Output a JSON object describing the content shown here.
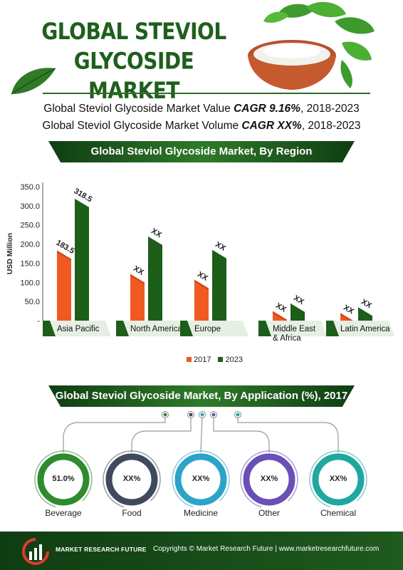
{
  "header": {
    "title_line1": "GLOBAL STEVIOL",
    "title_line2": "GLYCOSIDE MARKET",
    "value_prefix": "Global Steviol Glycoside Market Value ",
    "value_cagr": "CAGR 9.16%",
    "value_suffix": ", 2018-2023",
    "volume_prefix": "Global Steviol Glycoside Market Volume ",
    "volume_cagr": "CAGR XX%",
    "volume_suffix": ", 2018-2023"
  },
  "region_section": {
    "title": "Global Steviol Glycoside Market, By Region"
  },
  "application_section": {
    "title": "Global Steviol Glycoside Market, By Application (%), 2017"
  },
  "chart_data": [
    {
      "type": "bar",
      "title": "Global Steviol Glycoside Market, By Region",
      "ylabel": "USD Million",
      "xlabel": "",
      "ylim": [
        0,
        350
      ],
      "yticks": [
        "-",
        "50.0",
        "100.0",
        "150.0",
        "200.0",
        "250.0",
        "300.0",
        "350.0"
      ],
      "categories": [
        "Asia Pacific",
        "North America",
        "Europe",
        "Middle East & Africa",
        "Latin America"
      ],
      "category_lines": [
        [
          "Asia Pacific"
        ],
        [
          "North America"
        ],
        [
          "Europe"
        ],
        [
          "Middle East",
          "& Africa"
        ],
        [
          "Latin America"
        ]
      ],
      "series": [
        {
          "name": "2017",
          "values": [
            183.5,
            122,
            107,
            25,
            20
          ],
          "labels": [
            "183.5",
            "XX",
            "XX",
            "XX",
            "XX"
          ]
        },
        {
          "name": "2023",
          "values": [
            318.5,
            220,
            185,
            45,
            35
          ],
          "labels": [
            "318.5",
            "XX",
            "XX",
            "XX",
            "XX"
          ]
        }
      ],
      "legend_position": "bottom",
      "grid": false
    },
    {
      "type": "pie",
      "title": "Global Steviol Glycoside Market, By Application (%), 2017",
      "categories": [
        "Beverage",
        "Food",
        "Medicine",
        "Other",
        "Chemical"
      ],
      "values": [
        51.0,
        null,
        null,
        null,
        null
      ],
      "labels": [
        "51.0%",
        "XX%",
        "XX%",
        "XX%",
        "XX%"
      ]
    }
  ],
  "colors": {
    "series_2017": "#f05a22",
    "series_2017_shade": "#b83a10",
    "series_2023": "#1d5e1a",
    "series_2023_shade": "#0f3d10",
    "axis": "#555555",
    "ring_beverage": "#2e8b2e",
    "ring_food": "#3f4a5c",
    "ring_medicine": "#2ba4c8",
    "ring_other": "#6a4fb5",
    "ring_chemical": "#1fa7a0"
  },
  "footer": {
    "brand": "MARKET RESEARCH FUTURE",
    "copyright": "Copyrights © Market Research Future | www.marketresearchfuture.com"
  }
}
